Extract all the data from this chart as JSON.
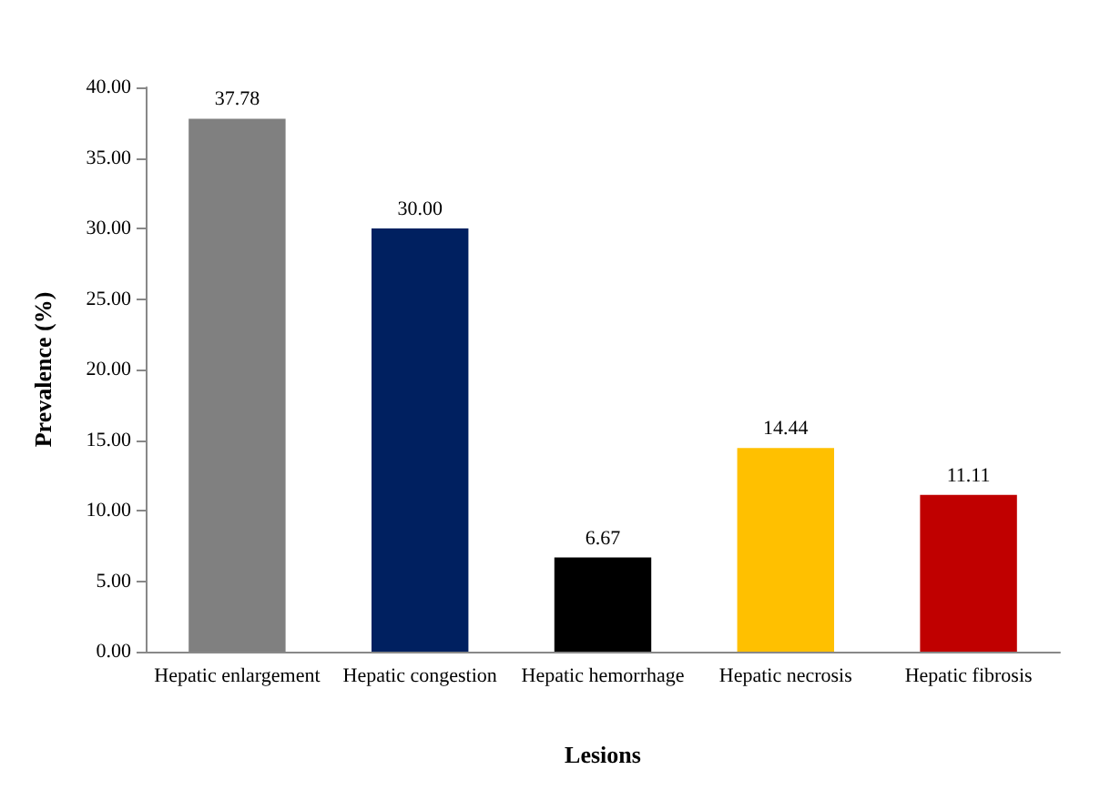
{
  "chart_data": {
    "type": "bar",
    "xlabel": "Lesions",
    "ylabel": "Prevalence (%)",
    "categories": [
      "Hepatic enlargement",
      "Hepatic congestion",
      "Hepatic hemorrhage",
      "Hepatic necrosis",
      "Hepatic fibrosis"
    ],
    "values": [
      37.78,
      30.0,
      6.67,
      14.44,
      11.11
    ],
    "colors": [
      "#808080",
      "#002060",
      "#000000",
      "#ffc000",
      "#c00000"
    ],
    "value_labels": [
      "37.78",
      "30.00",
      "6.67",
      "14.44",
      "11.11"
    ],
    "ylim": [
      0,
      40
    ],
    "yticks": [
      {
        "value": 0,
        "label": "0.00"
      },
      {
        "value": 5,
        "label": "5.00"
      },
      {
        "value": 10,
        "label": "10.00"
      },
      {
        "value": 15,
        "label": "15.00"
      },
      {
        "value": 20,
        "label": "20.00"
      },
      {
        "value": 25,
        "label": "25.00"
      },
      {
        "value": 30,
        "label": "30.00"
      },
      {
        "value": 35,
        "label": "35.00"
      },
      {
        "value": 40,
        "label": "40.00"
      }
    ],
    "grid": false
  }
}
